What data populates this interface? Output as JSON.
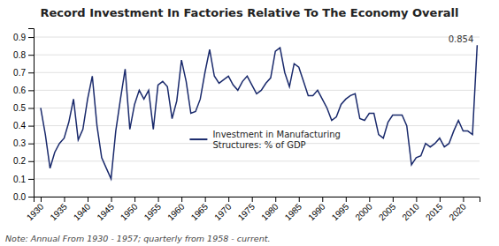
{
  "chart_data": {
    "type": "line",
    "title": "Record Investment In Factories Relative To The Economy Overall",
    "note": "Note: Annual From 1930 - 1957; quarterly from 1958 - current.",
    "annotations": [
      {
        "text": "0.854",
        "x": 2023,
        "y": 0.854
      }
    ],
    "x": [
      1930,
      1931,
      1932,
      1933,
      1934,
      1935,
      1936,
      1937,
      1938,
      1939,
      1940,
      1941,
      1942,
      1943,
      1944,
      1945,
      1946,
      1947,
      1948,
      1949,
      1950,
      1951,
      1952,
      1953,
      1954,
      1955,
      1956,
      1957,
      1958,
      1959,
      1960,
      1961,
      1962,
      1963,
      1964,
      1965,
      1966,
      1967,
      1968,
      1969,
      1970,
      1971,
      1972,
      1973,
      1974,
      1975,
      1976,
      1977,
      1978,
      1979,
      1980,
      1981,
      1982,
      1983,
      1984,
      1985,
      1986,
      1987,
      1988,
      1989,
      1990,
      1991,
      1992,
      1993,
      1994,
      1995,
      1996,
      1997,
      1998,
      1999,
      2000,
      2001,
      2002,
      2003,
      2004,
      2005,
      2006,
      2007,
      2008,
      2009,
      2010,
      2011,
      2012,
      2013,
      2014,
      2015,
      2016,
      2017,
      2018,
      2019,
      2020,
      2021,
      2022,
      2023
    ],
    "series": [
      {
        "name": "Investment in Manufacturing\nStructures: % of GDP",
        "color": "#1a2a6c",
        "values": [
          0.5,
          0.35,
          0.16,
          0.25,
          0.3,
          0.33,
          0.42,
          0.55,
          0.32,
          0.38,
          0.55,
          0.68,
          0.4,
          0.22,
          0.16,
          0.1,
          0.37,
          0.55,
          0.72,
          0.38,
          0.52,
          0.6,
          0.55,
          0.6,
          0.38,
          0.63,
          0.65,
          0.62,
          0.44,
          0.54,
          0.77,
          0.65,
          0.47,
          0.48,
          0.55,
          0.7,
          0.83,
          0.68,
          0.64,
          0.66,
          0.68,
          0.63,
          0.6,
          0.65,
          0.68,
          0.63,
          0.58,
          0.6,
          0.64,
          0.67,
          0.82,
          0.84,
          0.7,
          0.62,
          0.75,
          0.73,
          0.65,
          0.57,
          0.57,
          0.6,
          0.55,
          0.5,
          0.43,
          0.45,
          0.52,
          0.55,
          0.57,
          0.58,
          0.44,
          0.43,
          0.47,
          0.47,
          0.35,
          0.33,
          0.42,
          0.46,
          0.46,
          0.46,
          0.4,
          0.18,
          0.22,
          0.23,
          0.3,
          0.28,
          0.3,
          0.33,
          0.28,
          0.3,
          0.37,
          0.43,
          0.37,
          0.37,
          0.35,
          0.854
        ]
      }
    ],
    "xlim": [
      1928.5,
      2023.5
    ],
    "xticks": [
      1930,
      1935,
      1940,
      1945,
      1950,
      1955,
      1960,
      1965,
      1970,
      1975,
      1980,
      1985,
      1990,
      1995,
      2000,
      2005,
      2010,
      2015,
      2020
    ],
    "ylim": [
      0.0,
      0.95
    ],
    "yticks": [
      {
        "value": 0.0,
        "label": "0.0"
      },
      0.1,
      0.2,
      0.3,
      0.4,
      0.5,
      0.6,
      0.7,
      0.8,
      0.9
    ],
    "grid": true,
    "legend": "center"
  }
}
